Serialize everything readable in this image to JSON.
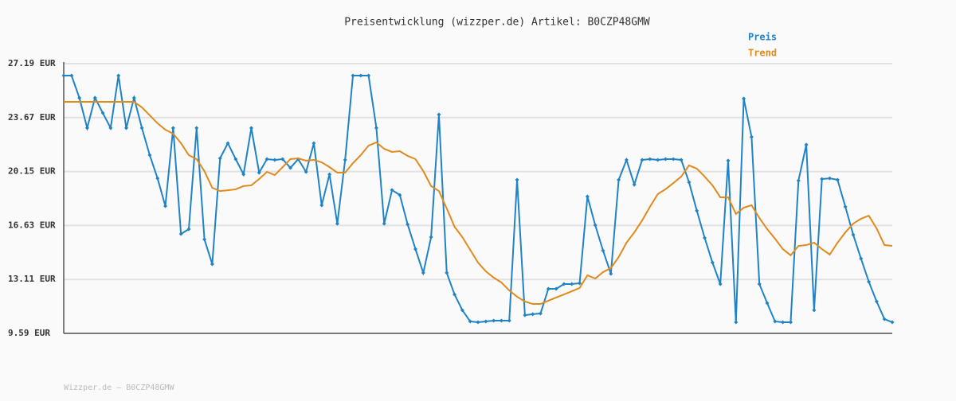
{
  "chart_data": {
    "type": "line",
    "title": "Preisentwicklung (wizzper.de) Artikel: B0CZP48GMW",
    "footer": "Wizzper.de – B0CZP48GMW",
    "ylim": [
      9.59,
      27.19
    ],
    "yticks": [
      {
        "value": 9.59,
        "label": "9.59 EUR"
      },
      {
        "value": 13.11,
        "label": "13.11 EUR"
      },
      {
        "value": 16.63,
        "label": "16.63 EUR"
      },
      {
        "value": 20.15,
        "label": "20.15 EUR"
      },
      {
        "value": 23.67,
        "label": "23.67 EUR"
      },
      {
        "value": 27.19,
        "label": "27.19 EUR"
      }
    ],
    "grid": true,
    "legend": "top-right",
    "series": [
      {
        "name": "Preis",
        "color": "#1f83c6",
        "markers": true,
        "values": [
          26.41,
          26.41,
          24.96,
          22.99,
          24.96,
          23.97,
          22.99,
          26.41,
          22.99,
          24.96,
          22.99,
          21.22,
          19.71,
          17.9,
          22.99,
          16.08,
          16.39,
          22.99,
          15.72,
          14.11,
          21.01,
          22.0,
          20.96,
          19.97,
          22.99,
          20.08,
          20.96,
          20.91,
          20.96,
          20.39,
          20.96,
          20.13,
          22.0,
          17.95,
          19.97,
          16.75,
          20.91,
          26.41,
          26.41,
          26.41,
          22.99,
          16.75,
          18.94,
          18.62,
          16.7,
          15.09,
          13.54,
          15.87,
          23.87,
          13.54,
          12.13,
          11.1,
          10.37,
          10.32,
          10.37,
          10.42,
          10.42,
          10.42,
          19.61,
          10.78,
          10.84,
          10.89,
          12.5,
          12.5,
          12.81,
          12.81,
          12.86,
          18.52,
          16.65,
          14.99,
          13.48,
          19.61,
          20.91,
          19.3,
          20.91,
          20.96,
          20.91,
          20.96,
          20.96,
          20.91,
          19.45,
          17.59,
          15.82,
          14.21,
          12.81,
          20.86,
          10.32,
          24.91,
          22.41,
          12.81,
          11.56,
          10.37,
          10.32,
          10.32,
          19.56,
          21.9,
          11.1,
          19.66,
          19.71,
          19.61,
          17.85,
          16.03,
          14.47,
          12.96,
          11.67,
          10.52,
          10.32
        ]
      },
      {
        "name": "Trend",
        "color": "#e08a1e",
        "markers": false,
        "values": [
          24.7,
          24.7,
          24.7,
          24.7,
          24.7,
          24.7,
          24.7,
          24.7,
          24.7,
          24.7,
          24.34,
          23.82,
          23.3,
          22.88,
          22.62,
          22.0,
          21.22,
          20.96,
          20.18,
          19.09,
          18.88,
          18.93,
          18.99,
          19.2,
          19.25,
          19.66,
          20.13,
          19.92,
          20.44,
          20.96,
          21.01,
          20.86,
          20.91,
          20.75,
          20.44,
          20.08,
          20.08,
          20.7,
          21.22,
          21.84,
          22.05,
          21.63,
          21.43,
          21.48,
          21.17,
          20.96,
          20.18,
          19.2,
          18.88,
          17.74,
          16.55,
          15.87,
          15.04,
          14.21,
          13.64,
          13.23,
          12.91,
          12.39,
          11.98,
          11.67,
          11.51,
          11.51,
          11.72,
          11.93,
          12.13,
          12.34,
          12.55,
          13.38,
          13.17,
          13.59,
          13.85,
          14.57,
          15.51,
          16.18,
          16.96,
          17.85,
          18.68,
          19.0,
          19.4,
          19.82,
          20.55,
          20.34,
          19.82,
          19.25,
          18.47,
          18.47,
          17.38,
          17.79,
          17.95,
          17.12,
          16.39,
          15.77,
          15.09,
          14.68,
          15.3,
          15.35,
          15.51,
          15.09,
          14.73,
          15.51,
          16.18,
          16.75,
          17.07,
          17.27,
          16.44,
          15.35,
          15.3
        ]
      }
    ]
  }
}
